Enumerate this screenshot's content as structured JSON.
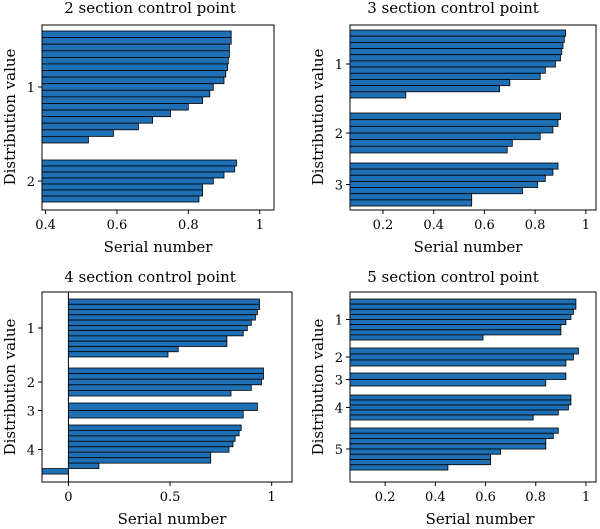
{
  "chart_data": [
    {
      "type": "bar",
      "orientation": "horizontal",
      "title": "2 section control point",
      "xlabel": "Serial number",
      "ylabel": "Distribution value",
      "xlim": [
        0.39,
        1.04
      ],
      "xticks": [
        0.4,
        0.6,
        0.8,
        1
      ],
      "xtick_labels": [
        "0.4",
        "0.6",
        "0.8",
        "1"
      ],
      "yticks": [
        {
          "label": "1",
          "value": 1
        },
        {
          "label": "2",
          "value": 2
        }
      ],
      "groups": [
        {
          "label": "1",
          "values": [
            0.92,
            0.92,
            0.915,
            0.915,
            0.912,
            0.91,
            0.905,
            0.9,
            0.87,
            0.86,
            0.84,
            0.8,
            0.75,
            0.7,
            0.66,
            0.59,
            0.52
          ]
        },
        {
          "label": "2",
          "values": [
            0.935,
            0.93,
            0.9,
            0.87,
            0.84,
            0.84,
            0.83
          ]
        }
      ]
    },
    {
      "type": "bar",
      "orientation": "horizontal",
      "title": "3 section control point",
      "xlabel": "Serial number",
      "ylabel": "Distribution value",
      "xlim": [
        0.07,
        1.04
      ],
      "xticks": [
        0.2,
        0.4,
        0.6,
        0.8,
        1
      ],
      "xtick_labels": [
        "0.2",
        "0.4",
        "0.6",
        "0.8",
        "1"
      ],
      "yticks": [
        {
          "label": "1",
          "value": 1
        },
        {
          "label": "2",
          "value": 2
        },
        {
          "label": "3",
          "value": 3
        }
      ],
      "groups": [
        {
          "label": "1",
          "values": [
            0.92,
            0.915,
            0.91,
            0.905,
            0.9,
            0.88,
            0.84,
            0.82,
            0.7,
            0.66,
            0.29
          ]
        },
        {
          "label": "2",
          "values": [
            0.9,
            0.89,
            0.87,
            0.82,
            0.71,
            0.69
          ]
        },
        {
          "label": "3",
          "values": [
            0.89,
            0.87,
            0.84,
            0.81,
            0.75,
            0.55,
            0.55
          ]
        }
      ]
    },
    {
      "type": "bar",
      "orientation": "horizontal",
      "title": "4 section control point",
      "xlabel": "Serial number",
      "ylabel": "Distribution value",
      "xlim": [
        -0.13,
        1.1
      ],
      "xticks": [
        0,
        0.5,
        1
      ],
      "xtick_labels": [
        "0",
        "0.5",
        "1"
      ],
      "yticks": [
        {
          "label": "1",
          "value": 1
        },
        {
          "label": "2",
          "value": 2
        },
        {
          "label": "3",
          "value": 3
        },
        {
          "label": "4",
          "value": 4
        }
      ],
      "groups": [
        {
          "label": "1",
          "values": [
            0.94,
            0.94,
            0.93,
            0.92,
            0.9,
            0.88,
            0.86,
            0.78,
            0.78,
            0.54,
            0.49
          ]
        },
        {
          "label": "2",
          "values": [
            0.96,
            0.96,
            0.95,
            0.9,
            0.8
          ]
        },
        {
          "label": "3",
          "values": [
            0.93,
            0.86
          ]
        },
        {
          "label": "4",
          "values": [
            0.85,
            0.84,
            0.82,
            0.81,
            0.79,
            0.7,
            0.7,
            0.15,
            -0.13
          ]
        }
      ]
    },
    {
      "type": "bar",
      "orientation": "horizontal",
      "title": "5 section control point",
      "xlabel": "Serial number",
      "ylabel": "Distribution value",
      "xlim": [
        0.06,
        1.04
      ],
      "xticks": [
        0.2,
        0.4,
        0.6,
        0.8,
        1
      ],
      "xtick_labels": [
        "0.2",
        "0.4",
        "0.6",
        "0.8",
        "1"
      ],
      "yticks": [
        {
          "label": "1",
          "value": 1
        },
        {
          "label": "2",
          "value": 2
        },
        {
          "label": "3",
          "value": 3
        },
        {
          "label": "4",
          "value": 4
        },
        {
          "label": "5",
          "value": 5
        }
      ],
      "groups": [
        {
          "label": "1",
          "values": [
            0.96,
            0.96,
            0.95,
            0.94,
            0.92,
            0.9,
            0.9,
            0.59
          ]
        },
        {
          "label": "2",
          "values": [
            0.97,
            0.95,
            0.92
          ]
        },
        {
          "label": "3",
          "values": [
            0.92,
            0.84
          ]
        },
        {
          "label": "4",
          "values": [
            0.94,
            0.94,
            0.93,
            0.89,
            0.79
          ]
        },
        {
          "label": "5",
          "values": [
            0.89,
            0.87,
            0.84,
            0.84,
            0.66,
            0.62,
            0.62,
            0.45
          ]
        }
      ]
    }
  ]
}
